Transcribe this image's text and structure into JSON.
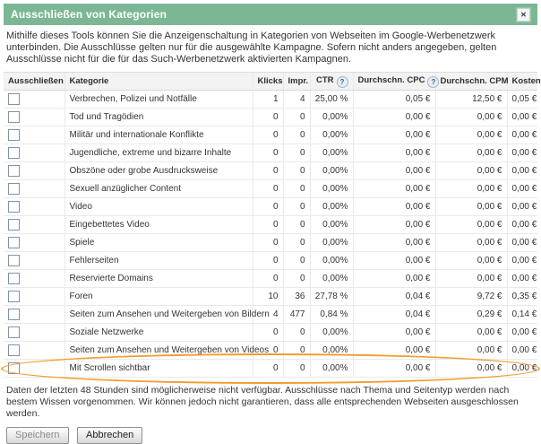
{
  "dialog": {
    "title": "Ausschließen von Kategorien",
    "close_icon_glyph": "✕",
    "description": "Mithilfe dieses Tools können Sie die Anzeigenschaltung in Kategorien von Webseiten im Google-Werbenetzwerk unterbinden. Die Ausschlüsse gelten nur für die ausgewählte Kampagne. Sofern nicht anders angegeben, gelten Ausschlüsse nicht für die für das Such-Werbenetzwerk aktivierten Kampagnen.",
    "footer_note": "Daten der letzten 48 Stunden sind möglicherweise nicht verfügbar. Ausschlüsse nach Thema und Seitentyp werden nach bestem Wissen vorgenommen. Wir können jedoch nicht garantieren, dass alle entsprechenden Webseiten ausgeschlossen werden.",
    "save_label": "Speichern",
    "cancel_label": "Abbrechen"
  },
  "table": {
    "help_glyph": "?",
    "headers": {
      "exclude": "Ausschließen",
      "category": "Kategorie",
      "klicks": "Klicks",
      "impr": "Impr.",
      "ctr": "CTR",
      "cpc": "Durchschn. CPC",
      "cpm": "Durchschn. CPM",
      "kosten": "Kosten"
    },
    "rows": [
      {
        "category": "Verbrechen, Polizei und Notfälle",
        "klicks": "1",
        "impr": "4",
        "ctr": "25,00 %",
        "cpc": "0,05 €",
        "cpm": "12,50 €",
        "kosten": "0,05 €"
      },
      {
        "category": "Tod und Tragödien",
        "klicks": "0",
        "impr": "0",
        "ctr": "0,00%",
        "cpc": "0,00 €",
        "cpm": "0,00 €",
        "kosten": "0,00 €"
      },
      {
        "category": "Militär und internationale Konflikte",
        "klicks": "0",
        "impr": "0",
        "ctr": "0,00%",
        "cpc": "0,00 €",
        "cpm": "0,00 €",
        "kosten": "0,00 €"
      },
      {
        "category": "Jugendliche, extreme und bizarre Inhalte",
        "klicks": "0",
        "impr": "0",
        "ctr": "0,00%",
        "cpc": "0,00 €",
        "cpm": "0,00 €",
        "kosten": "0,00 €"
      },
      {
        "category": "Obszöne oder grobe Ausdrucksweise",
        "klicks": "0",
        "impr": "0",
        "ctr": "0,00%",
        "cpc": "0,00 €",
        "cpm": "0,00 €",
        "kosten": "0,00 €"
      },
      {
        "category": "Sexuell anzüglicher Content",
        "klicks": "0",
        "impr": "0",
        "ctr": "0,00%",
        "cpc": "0,00 €",
        "cpm": "0,00 €",
        "kosten": "0,00 €"
      },
      {
        "category": "Video",
        "klicks": "0",
        "impr": "0",
        "ctr": "0,00%",
        "cpc": "0,00 €",
        "cpm": "0,00 €",
        "kosten": "0,00 €"
      },
      {
        "category": "Eingebettetes Video",
        "klicks": "0",
        "impr": "0",
        "ctr": "0,00%",
        "cpc": "0,00 €",
        "cpm": "0,00 €",
        "kosten": "0,00 €"
      },
      {
        "category": "Spiele",
        "klicks": "0",
        "impr": "0",
        "ctr": "0,00%",
        "cpc": "0,00 €",
        "cpm": "0,00 €",
        "kosten": "0,00 €"
      },
      {
        "category": "Fehlerseiten",
        "klicks": "0",
        "impr": "0",
        "ctr": "0,00%",
        "cpc": "0,00 €",
        "cpm": "0,00 €",
        "kosten": "0,00 €"
      },
      {
        "category": "Reservierte Domains",
        "klicks": "0",
        "impr": "0",
        "ctr": "0,00%",
        "cpc": "0,00 €",
        "cpm": "0,00 €",
        "kosten": "0,00 €"
      },
      {
        "category": "Foren",
        "klicks": "10",
        "impr": "36",
        "ctr": "27,78 %",
        "cpc": "0,04 €",
        "cpm": "9,72 €",
        "kosten": "0,35 €"
      },
      {
        "category": "Seiten zum Ansehen und Weitergeben von Bildern",
        "klicks": "4",
        "impr": "477",
        "ctr": "0,84 %",
        "cpc": "0,04 €",
        "cpm": "0,29 €",
        "kosten": "0,14 €"
      },
      {
        "category": "Soziale Netzwerke",
        "klicks": "0",
        "impr": "0",
        "ctr": "0,00%",
        "cpc": "0,00 €",
        "cpm": "0,00 €",
        "kosten": "0,00 €"
      },
      {
        "category": "Seiten zum Ansehen und Weitergeben von Videos",
        "klicks": "0",
        "impr": "0",
        "ctr": "0,00%",
        "cpc": "0,00 €",
        "cpm": "0,00 €",
        "kosten": "0,00 €"
      },
      {
        "category": "Mit Scrollen sichtbar",
        "klicks": "0",
        "impr": "0",
        "ctr": "0,00%",
        "cpc": "0,00 €",
        "cpm": "0,00 €",
        "kosten": "0,00 €",
        "highlighted": true
      }
    ]
  },
  "colors": {
    "titlebar_green": "#7cb795",
    "annotation_orange": "#f09d2e",
    "header_background": "#f3f3f3",
    "row_border": "#e9e9e9"
  }
}
